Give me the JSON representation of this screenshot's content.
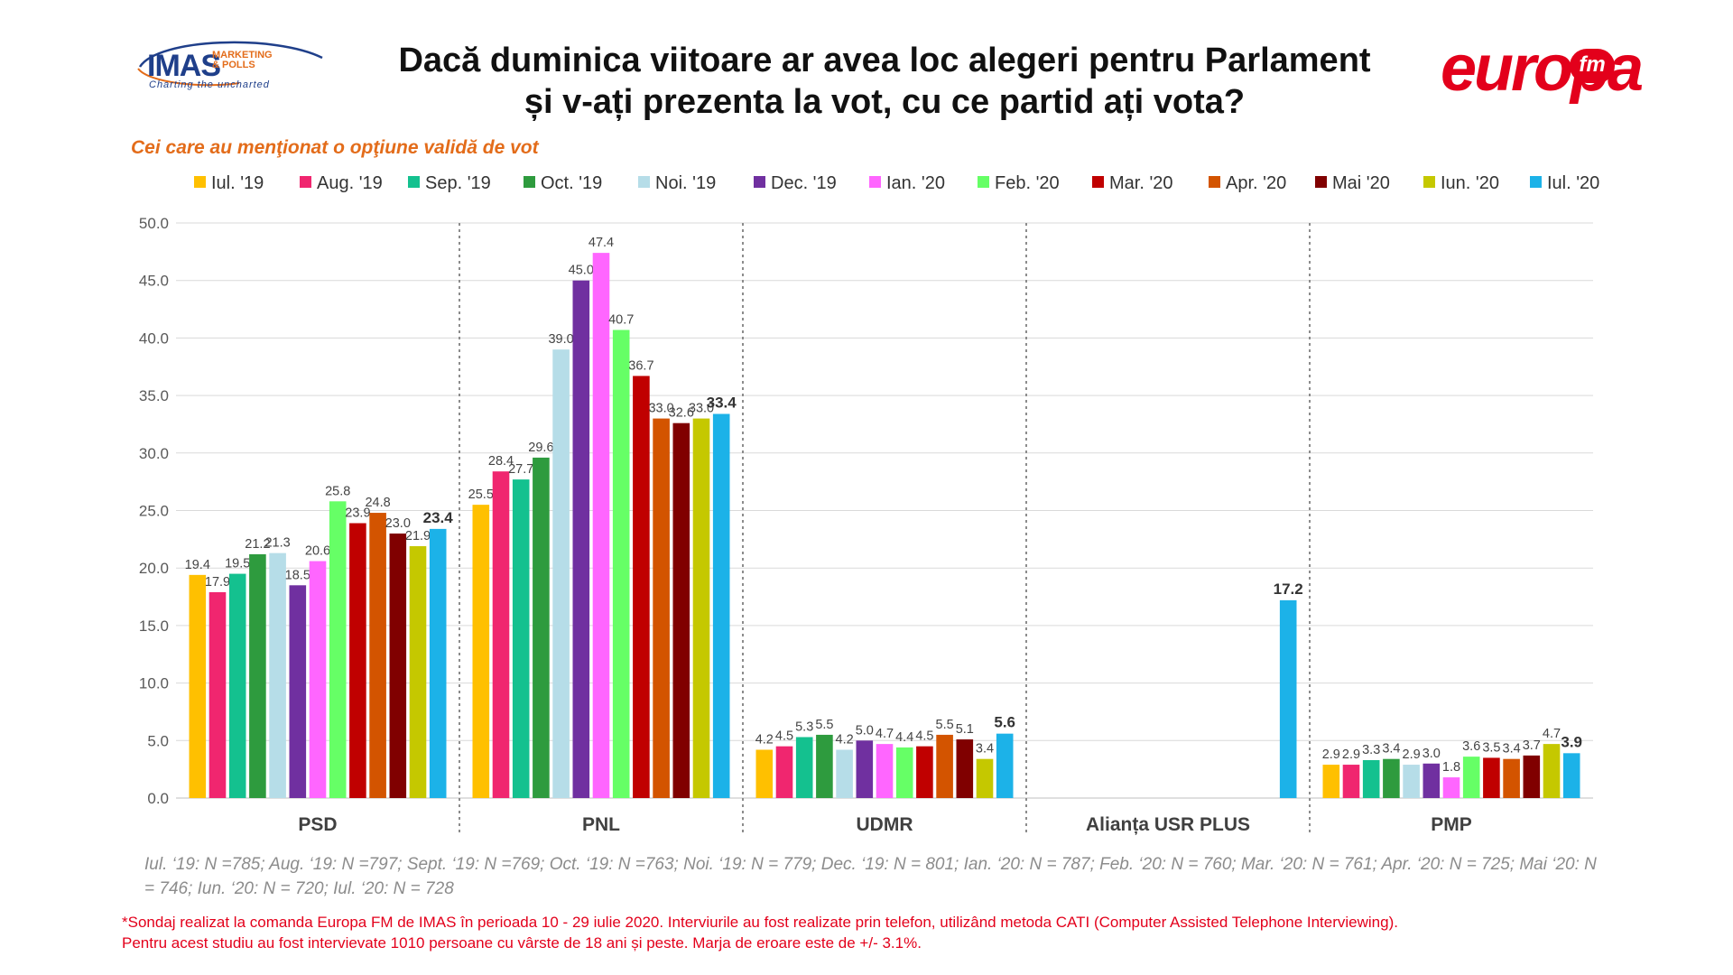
{
  "header": {
    "imas_logo": {
      "brand": "IMAS",
      "sub1": "MARKETING",
      "sub2": "& POLLS",
      "tagline": "Charting the uncharted"
    },
    "title_line1": "Dacă duminica viitoare ar avea loc alegeri pentru Parlament",
    "title_line2": "și v-ați prezenta la vot, cu ce partid ați vota?",
    "europa_logo": {
      "word": "europa",
      "fm": "fm"
    }
  },
  "colors": {
    "series": [
      "#ffc000",
      "#f0266f",
      "#14c18f",
      "#2e9b3e",
      "#b6dde8",
      "#7030a0",
      "#ff66ff",
      "#66ff66",
      "#c00000",
      "#d35400",
      "#800000",
      "#c5c800",
      "#1cb2e8"
    ],
    "gridline": "#d9d9d9",
    "separator": "#8c8c8c",
    "label_text": "#444444",
    "footer_red": "#e3001b",
    "subtitle_orange": "#e36c1a"
  },
  "chart_data": {
    "type": "bar",
    "subtitle": "Cei care au menţionat o opţiune validă de vot",
    "categories": [
      "PSD",
      "PNL",
      "UDMR",
      "Alianța USR PLUS",
      "PMP"
    ],
    "y_ticks": [
      "0.0",
      "5.0",
      "10.0",
      "15.0",
      "20.0",
      "25.0",
      "30.0",
      "35.0",
      "40.0",
      "45.0",
      "50.0"
    ],
    "ylim": [
      0,
      50
    ],
    "grid": true,
    "legend_position": "top",
    "series": [
      {
        "name": "Iul. '19",
        "values": [
          19.4,
          25.5,
          4.2,
          null,
          2.9
        ]
      },
      {
        "name": "Aug. '19",
        "values": [
          17.9,
          28.4,
          4.5,
          null,
          2.9
        ]
      },
      {
        "name": "Sep. '19",
        "values": [
          19.5,
          27.7,
          5.3,
          null,
          3.3
        ]
      },
      {
        "name": "Oct. '19",
        "values": [
          21.2,
          29.6,
          5.5,
          null,
          3.4
        ]
      },
      {
        "name": "Noi. '19",
        "values": [
          21.3,
          39.0,
          4.2,
          null,
          2.9
        ]
      },
      {
        "name": "Dec. '19",
        "values": [
          18.5,
          45.0,
          5.0,
          null,
          3.0
        ]
      },
      {
        "name": "Ian. '20",
        "values": [
          20.6,
          47.4,
          4.7,
          null,
          1.8
        ]
      },
      {
        "name": "Feb. '20",
        "values": [
          25.8,
          40.7,
          4.4,
          null,
          3.6
        ]
      },
      {
        "name": "Mar. '20",
        "values": [
          23.9,
          36.7,
          4.5,
          null,
          3.5
        ]
      },
      {
        "name": "Apr. '20",
        "values": [
          24.8,
          33.0,
          5.5,
          null,
          3.4
        ]
      },
      {
        "name": "Mai '20",
        "values": [
          23.0,
          32.6,
          5.1,
          null,
          3.7
        ]
      },
      {
        "name": "Iun. '20",
        "values": [
          21.9,
          33.0,
          3.4,
          null,
          4.7
        ]
      },
      {
        "name": "Iul. '20",
        "values": [
          23.4,
          33.4,
          5.6,
          17.2,
          3.9
        ]
      }
    ],
    "bold_labels_series_index": 12
  },
  "sample_note": "Iul. ‘19: N =785; Aug. ‘19: N =797; Sept. ‘19: N =769; Oct. ‘19: N =763; Noi. ‘19: N = 779; Dec. ‘19: N = 801; Ian. ‘20: N = 787; Feb. ‘20: N = 760; Mar. ‘20: N = 761; Apr. ‘20: N = 725; Mai ‘20: N = 746; Iun. ‘20: N = 720; Iul. ‘20: N = 728",
  "footer": {
    "line1": "*Sondaj realizat la comanda Europa FM de IMAS în perioada  10 - 29 iulie 2020. Interviurile au fost realizate prin telefon, utilizând metoda CATI (Computer Assisted Telephone Interviewing).",
    "line2": "Pentru acest studiu au fost intervievate 1010 persoane cu vârste de 18 ani și peste. Marja de eroare este de +/- 3.1%."
  }
}
